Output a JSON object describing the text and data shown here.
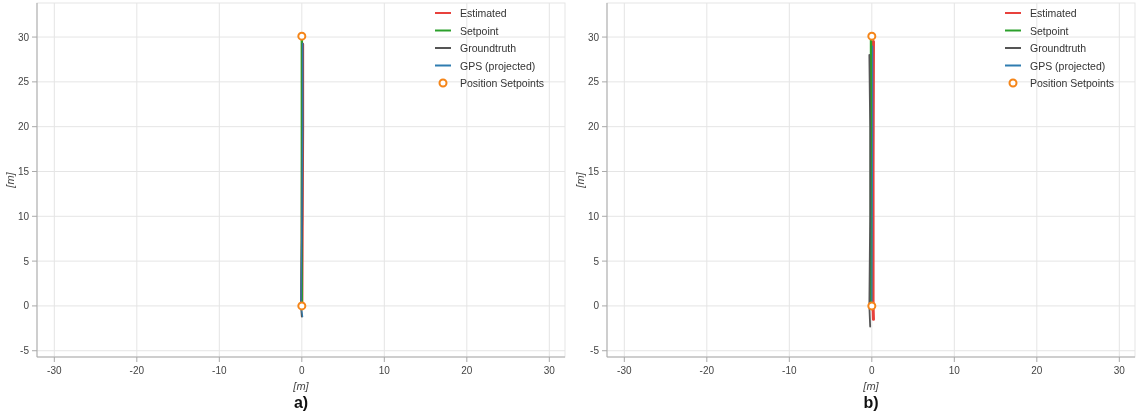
{
  "chart_data": [
    {
      "type": "line",
      "title": "a)",
      "xlabel": "[m]",
      "ylabel": "[m]",
      "xlim": [
        -32.1,
        31.9
      ],
      "ylim": [
        -5.7,
        33.8
      ],
      "xticks": [
        -30,
        -20,
        -10,
        0,
        10,
        20,
        30
      ],
      "yticks": [
        -5,
        0,
        5,
        10,
        15,
        20,
        25,
        30
      ],
      "grid": true,
      "legend": "top right",
      "series": [
        {
          "name": "Estimated",
          "color": "#e8413c",
          "x": [
            0,
            0.05,
            0.1,
            0.1
          ],
          "values": [
            0,
            10,
            20,
            29.2
          ]
        },
        {
          "name": "Setpoint",
          "color": "#2ca02c",
          "x": [
            0,
            0,
            0
          ],
          "values": [
            0,
            15,
            30
          ]
        },
        {
          "name": "Groundtruth",
          "color": "#555555",
          "x": [
            0,
            -0.1,
            0.05,
            0.1,
            0.1
          ],
          "values": [
            -1.2,
            0,
            10,
            20,
            29.3
          ]
        },
        {
          "name": "GPS (projected)",
          "color": "#2f7cb0",
          "x": [
            0.1,
            -0.1,
            0,
            0.1,
            0.1
          ],
          "values": [
            -1.2,
            0,
            10,
            20,
            29.3
          ]
        },
        {
          "name": "Position Setpoints",
          "type": "scatter",
          "marker": "circle",
          "color": "#f58518",
          "x": [
            0,
            0
          ],
          "values": [
            30.1,
            0
          ]
        }
      ]
    },
    {
      "type": "line",
      "title": "b)",
      "xlabel": "[m]",
      "ylabel": "[m]",
      "xlim": [
        -32.1,
        31.9
      ],
      "ylim": [
        -5.7,
        33.8
      ],
      "xticks": [
        -30,
        -20,
        -10,
        0,
        10,
        20,
        30
      ],
      "yticks": [
        -5,
        0,
        5,
        10,
        15,
        20,
        25,
        30
      ],
      "grid": true,
      "legend": "top right",
      "series": [
        {
          "name": "Estimated",
          "color": "#e8413c",
          "x": [
            0.2,
            0.15,
            0.15,
            0.2
          ],
          "values": [
            -1.5,
            0,
            15,
            29.5
          ]
        },
        {
          "name": "Setpoint",
          "color": "#2ca02c",
          "x": [
            -0.1,
            -0.1,
            -0.1
          ],
          "values": [
            0,
            15,
            30
          ]
        },
        {
          "name": "Groundtruth",
          "color": "#555555",
          "x": [
            -0.2,
            -0.3,
            -0.2,
            -0.2,
            -0.3
          ],
          "values": [
            -2.3,
            0,
            10,
            20,
            28
          ]
        },
        {
          "name": "GPS (projected)",
          "color": "#2f7cb0",
          "x": [
            0,
            0.05,
            0.1,
            0.1
          ],
          "values": [
            0,
            10,
            20,
            29
          ]
        },
        {
          "name": "Position Setpoints",
          "type": "scatter",
          "marker": "circle",
          "color": "#f58518",
          "x": [
            0,
            0
          ],
          "values": [
            30.1,
            0
          ]
        }
      ]
    }
  ]
}
